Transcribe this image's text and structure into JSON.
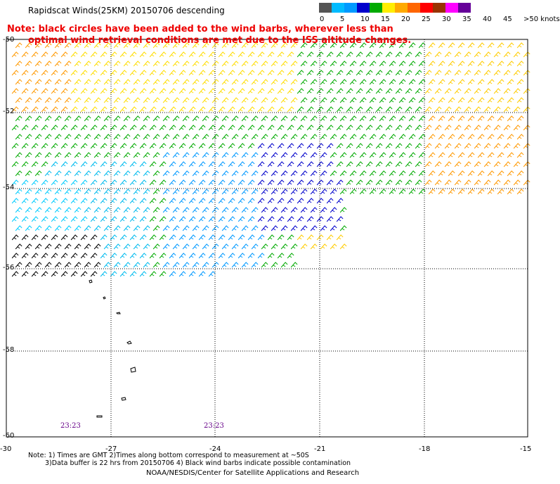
{
  "title": "Rapidscat Winds(25KM) 20150706 descending",
  "note": {
    "line1": "Note: black circles have been added to the wind barbs, wherever less than",
    "line2": "optimal wind retrieval conditions are met due to the ISS altitude changes."
  },
  "legend": {
    "colors": [
      "#555555",
      "#00bbff",
      "#0099ff",
      "#0000cc",
      "#00aa00",
      "#ffee00",
      "#ffaa00",
      "#ff6600",
      "#ff0000",
      "#993300",
      "#ff00ff",
      "#660099"
    ],
    "labels": [
      "0",
      "5",
      "10",
      "15",
      "20",
      "25",
      "30",
      "35",
      "40",
      "45",
      ">50 knots"
    ]
  },
  "axes": {
    "lat_labels": [
      "-50",
      "-52",
      "-54",
      "-56",
      "-58",
      "-60"
    ],
    "lon_labels": [
      "-30",
      "-27",
      "-24",
      "-21",
      "-18",
      "-15"
    ]
  },
  "time_labels": [
    "23:23",
    "23:23"
  ],
  "footer": {
    "line1": "Note: 1) Times are GMT 2)Times along bottom correspond to measurement at ~50S",
    "line2": "3)Data buffer is 22 hrs from 20150706 4) Black wind barbs indicate possible contamination",
    "credit": "NOAA/NESDIS/Center for Satellite Applications and Research"
  }
}
